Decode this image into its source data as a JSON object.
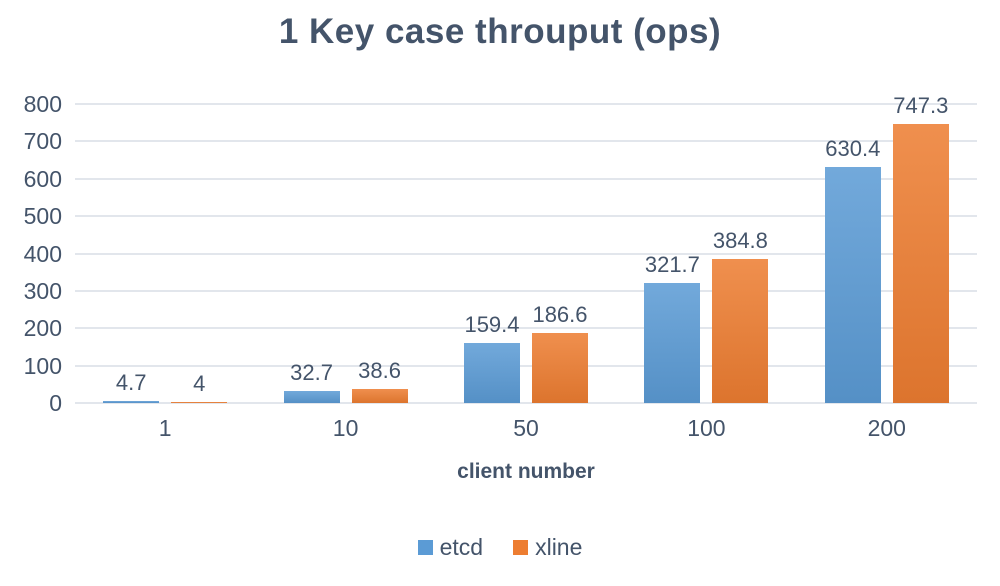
{
  "chart_data": {
    "type": "bar",
    "title": "1 Key case throuput (ops)",
    "xlabel": "client number",
    "ylabel": "",
    "categories": [
      "1",
      "10",
      "50",
      "100",
      "200"
    ],
    "series": [
      {
        "name": "etcd",
        "color": "#5B9BD5",
        "values": [
          4.7,
          32.7,
          159.4,
          321.7,
          630.4
        ],
        "labels": [
          "4.7",
          "32.7",
          "159.4",
          "321.7",
          "630.4"
        ]
      },
      {
        "name": "xline",
        "color": "#ED7D31",
        "values": [
          4,
          38.6,
          186.6,
          384.8,
          747.3
        ],
        "labels": [
          "4",
          "38.6",
          "186.6",
          "384.8",
          "747.3"
        ]
      }
    ],
    "ylim": [
      0,
      800
    ],
    "ytick_step": 100,
    "yticks": [
      "0",
      "100",
      "200",
      "300",
      "400",
      "500",
      "600",
      "700",
      "800"
    ],
    "grid": true,
    "legend_position": "bottom"
  },
  "colors": {
    "text": "#44546A",
    "gridline": "#E2E6EC",
    "background": "#FFFFFF",
    "etcd_bar": "#5B9BD5",
    "xline_bar": "#ED7D31"
  }
}
